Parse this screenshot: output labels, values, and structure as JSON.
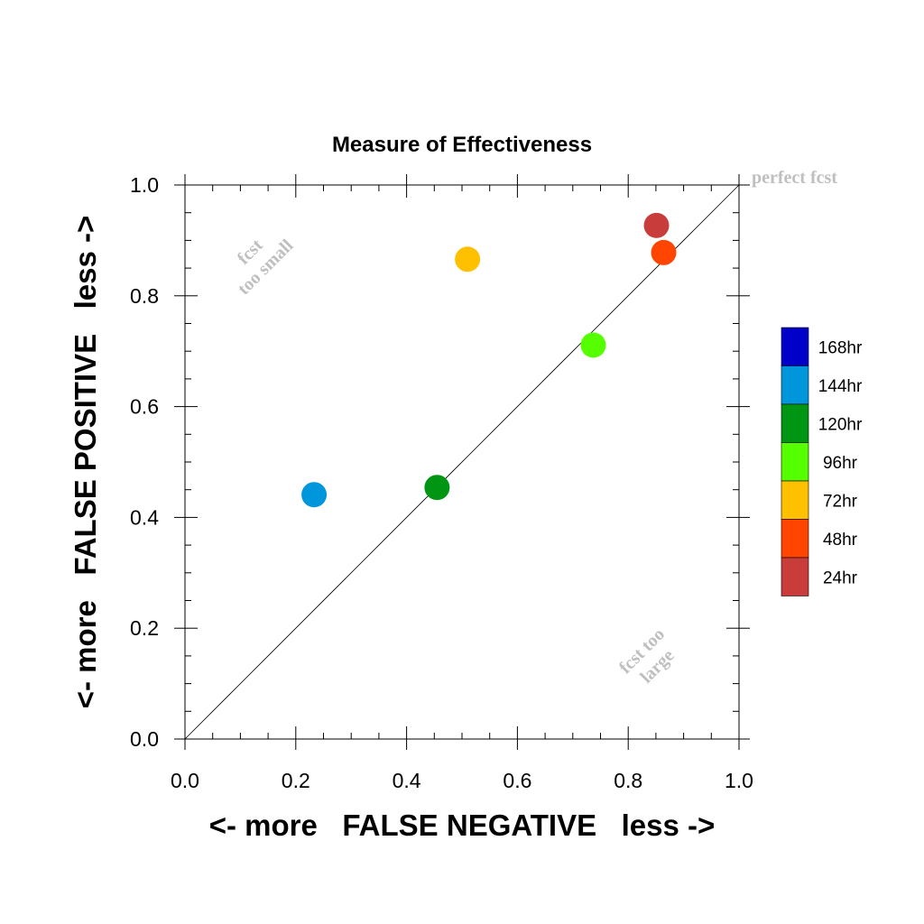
{
  "chart_data": {
    "type": "scatter",
    "title": "Measure of Effectiveness",
    "xlabel": "<- more   FALSE NEGATIVE   less ->",
    "ylabel": "<- more   FALSE POSITIVE   less ->",
    "xlim": [
      0.0,
      1.0
    ],
    "ylim": [
      0.0,
      1.0
    ],
    "xticks": [
      "0.0",
      "0.2",
      "0.4",
      "0.6",
      "0.8",
      "1.0"
    ],
    "yticks": [
      "0.0",
      "0.2",
      "0.4",
      "0.6",
      "0.8",
      "1.0"
    ],
    "grid": false,
    "reference_line": "diagonal y = x",
    "legend_placement": "right",
    "annotations": {
      "perfect": "perfect fcst",
      "too_small_line1": "fcst",
      "too_small_line2": "too small",
      "too_large_line1": "fcst too",
      "too_large_line2": "large"
    },
    "series": [
      {
        "name": "168hr",
        "color": "#0000c8",
        "points": []
      },
      {
        "name": "144hr",
        "color": "#0096dc",
        "points": [
          [
            0.233,
            0.441
          ]
        ]
      },
      {
        "name": "120hr",
        "color": "#009614",
        "points": [
          [
            0.455,
            0.454
          ]
        ]
      },
      {
        "name": "96hr",
        "color": "#55ff00",
        "points": [
          [
            0.737,
            0.711
          ]
        ]
      },
      {
        "name": "72hr",
        "color": "#ffc000",
        "points": [
          [
            0.51,
            0.866
          ]
        ]
      },
      {
        "name": "48hr",
        "color": "#ff4500",
        "points": [
          [
            0.864,
            0.878
          ]
        ]
      },
      {
        "name": "24hr",
        "color": "#c83c3c",
        "points": [
          [
            0.851,
            0.927
          ]
        ]
      }
    ]
  }
}
